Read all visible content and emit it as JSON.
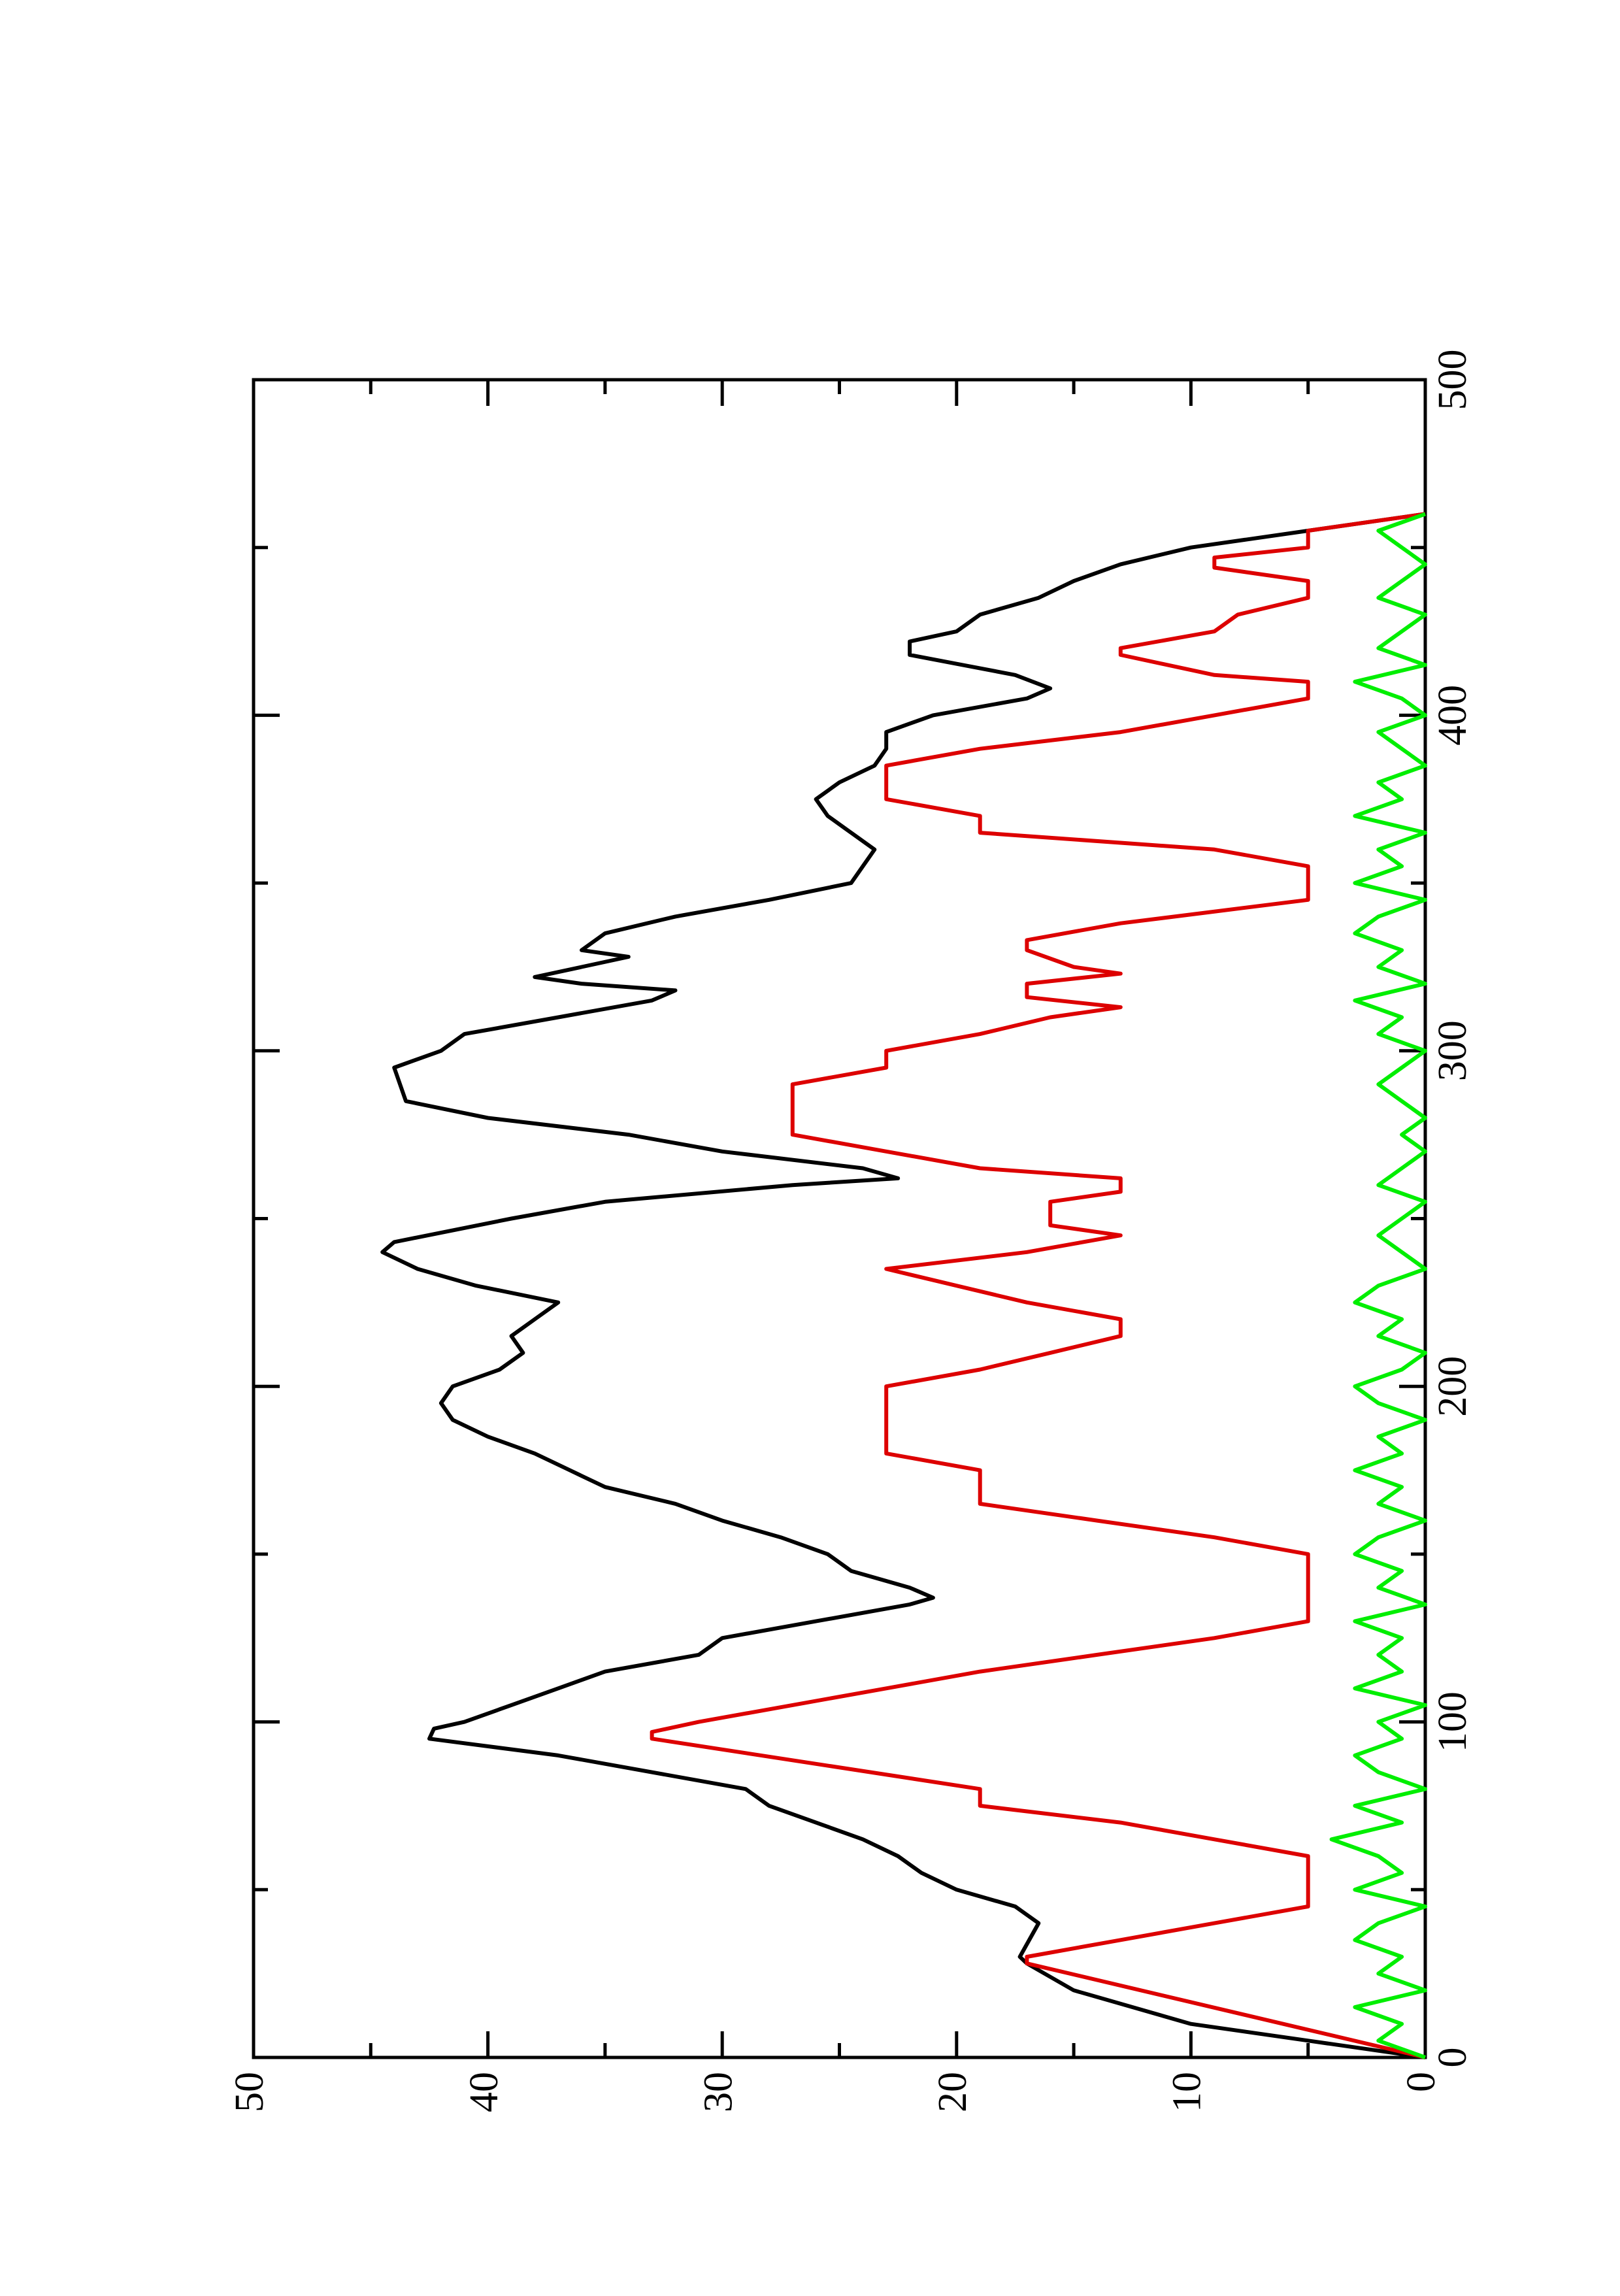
{
  "chart_data": {
    "type": "line",
    "xlim": [
      0,
      500
    ],
    "xticks": [
      0,
      100,
      200,
      300,
      400,
      500
    ],
    "xminorticks": [
      50,
      150,
      250,
      350,
      450
    ],
    "ylim": [
      0,
      50
    ],
    "yticks": [
      0,
      10,
      20,
      30,
      40,
      50
    ],
    "yminorticks": [
      5,
      15,
      25,
      35,
      45
    ],
    "series": [
      {
        "color": "#000000",
        "x": [
          0,
          5,
          10,
          20,
          28,
          30,
          40,
          45,
          50,
          55,
          60,
          65,
          70,
          75,
          80,
          90,
          95,
          98,
          100,
          105,
          110,
          115,
          120,
          125,
          130,
          135,
          137,
          140,
          145,
          150,
          155,
          160,
          165,
          170,
          175,
          180,
          185,
          190,
          195,
          200,
          205,
          210,
          215,
          220,
          225,
          230,
          235,
          240,
          243,
          250,
          255,
          260,
          262,
          265,
          270,
          275,
          280,
          285,
          295,
          300,
          305,
          310,
          315,
          318,
          320,
          322,
          325,
          328,
          330,
          335,
          340,
          345,
          350,
          355,
          360,
          365,
          370,
          375,
          380,
          385,
          390,
          395,
          400,
          405,
          408,
          412,
          418,
          422,
          425,
          430,
          435,
          440,
          445,
          450,
          455,
          460
        ],
        "values": [
          0,
          5,
          10,
          15,
          17,
          17.3,
          16.5,
          17.5,
          20,
          21.5,
          22.5,
          24,
          26,
          28,
          29,
          37,
          42.5,
          42.3,
          41,
          39,
          37,
          35,
          31,
          30,
          26,
          22,
          21,
          22,
          24.5,
          25.5,
          27.5,
          30,
          32,
          35,
          36.5,
          38,
          40,
          41.5,
          42,
          41.5,
          39.5,
          38.5,
          39,
          38,
          37,
          40.5,
          43,
          44.5,
          44,
          39,
          35,
          27,
          22.5,
          24,
          30,
          34,
          40,
          43.5,
          44,
          42,
          41,
          37,
          33,
          32,
          36,
          38,
          36,
          34,
          36,
          35,
          32,
          28,
          24.5,
          24,
          23.5,
          24.5,
          25.5,
          26,
          25,
          23.5,
          23,
          23,
          21,
          17,
          16,
          17.5,
          22,
          22,
          20,
          19,
          16.5,
          15,
          13,
          10,
          5,
          0
        ]
      },
      {
        "color": "#dd0000",
        "x": [
          0,
          28,
          30,
          35,
          40,
          45,
          60,
          65,
          70,
          75,
          80,
          95,
          97,
          100,
          105,
          110,
          115,
          120,
          125,
          130,
          150,
          155,
          160,
          165,
          175,
          180,
          200,
          205,
          210,
          215,
          220,
          225,
          230,
          235,
          240,
          245,
          248,
          255,
          258,
          262,
          265,
          270,
          275,
          290,
          295,
          300,
          305,
          310,
          313,
          316,
          320,
          323,
          325,
          330,
          333,
          338,
          345,
          355,
          360,
          365,
          370,
          375,
          385,
          390,
          395,
          400,
          405,
          410,
          412,
          418,
          420,
          425,
          430,
          435,
          440,
          444,
          447,
          450,
          455,
          460
        ],
        "values": [
          0,
          17,
          17,
          13,
          9,
          5,
          5,
          9,
          13,
          19,
          19,
          33,
          33,
          31,
          27,
          23,
          19,
          14,
          9,
          5,
          5,
          9,
          14,
          19,
          19,
          23,
          23,
          19,
          16,
          13,
          13,
          17,
          20,
          23,
          17,
          13,
          16,
          16,
          13,
          13,
          19,
          23,
          27,
          27,
          23,
          23,
          19,
          16,
          13,
          17,
          17,
          13,
          15,
          17,
          17,
          13,
          5,
          5,
          9,
          19,
          19,
          23,
          23,
          19,
          13,
          9,
          5,
          5,
          9,
          13,
          13,
          9,
          8,
          5,
          5,
          9,
          9,
          5,
          5,
          0
        ]
      },
      {
        "color": "#00ee00",
        "x": [
          0,
          5,
          10,
          15,
          20,
          25,
          30,
          35,
          40,
          45,
          50,
          55,
          60,
          65,
          70,
          75,
          80,
          85,
          90,
          95,
          100,
          105,
          110,
          115,
          120,
          125,
          130,
          135,
          140,
          145,
          150,
          155,
          160,
          165,
          170,
          175,
          180,
          185,
          190,
          195,
          200,
          205,
          210,
          215,
          220,
          225,
          230,
          235,
          240,
          245,
          250,
          255,
          260,
          265,
          270,
          275,
          280,
          285,
          290,
          295,
          300,
          305,
          310,
          315,
          320,
          325,
          330,
          335,
          340,
          345,
          350,
          355,
          360,
          365,
          370,
          375,
          380,
          385,
          390,
          395,
          400,
          405,
          410,
          415,
          420,
          425,
          430,
          435,
          440,
          445,
          450,
          455,
          460
        ],
        "values": [
          0,
          2,
          1,
          3,
          0,
          2,
          1,
          3,
          2,
          0,
          3,
          1,
          2,
          4,
          1,
          3,
          0,
          2,
          3,
          1,
          2,
          0,
          3,
          1,
          2,
          1,
          3,
          0,
          2,
          1,
          3,
          2,
          0,
          2,
          1,
          3,
          1,
          2,
          0,
          2,
          3,
          1,
          0,
          2,
          1,
          3,
          2,
          0,
          1,
          2,
          1,
          0,
          2,
          1,
          0,
          1,
          0,
          1,
          2,
          1,
          0,
          2,
          1,
          3,
          0,
          2,
          1,
          3,
          2,
          0,
          3,
          1,
          2,
          0,
          3,
          1,
          2,
          0,
          1,
          2,
          0,
          1,
          3,
          0,
          2,
          1,
          0,
          2,
          1,
          0,
          1,
          2,
          0
        ]
      }
    ]
  }
}
